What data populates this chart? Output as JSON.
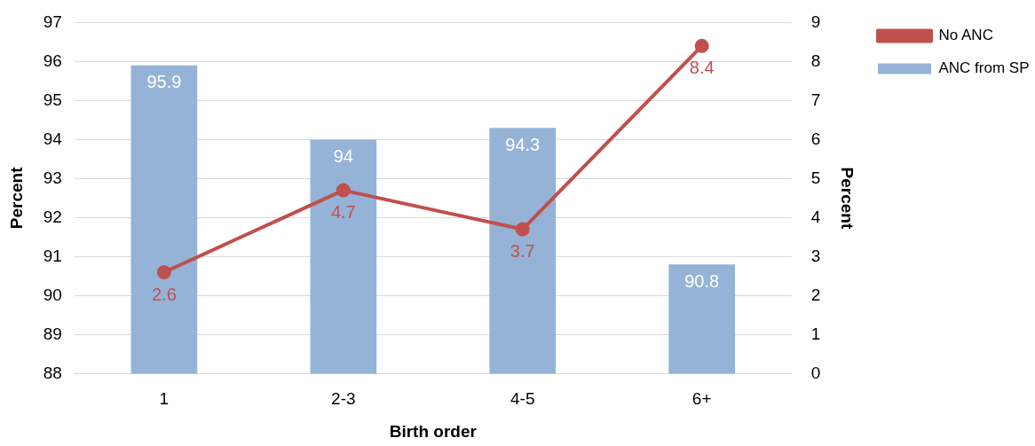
{
  "chart_data": {
    "type": "bar",
    "xlabel": "Birth order",
    "ylabel": "Percent",
    "y2label": "Percent",
    "categories": [
      "1",
      "2-3",
      "4-5",
      "6+"
    ],
    "series": [
      {
        "name": "ANC from SP",
        "color": "#95b3d7",
        "values": [
          95.9,
          94,
          94.3,
          90.8
        ]
      },
      {
        "name": "No ANC",
        "type": "line",
        "axis": "y2",
        "color": "#c0504d",
        "values": [
          2.6,
          4.7,
          3.7,
          8.4
        ]
      }
    ],
    "ylim": [
      88,
      97
    ],
    "yticks": [
      88,
      89,
      90,
      91,
      92,
      93,
      94,
      95,
      96,
      97
    ],
    "y2lim": [
      0,
      9
    ],
    "y2ticks": [
      0,
      1,
      2,
      3,
      4,
      5,
      6,
      7,
      8,
      9
    ],
    "grid": "y",
    "legend": "top right",
    "marker": "circle",
    "line_style": "solid",
    "data_labels": true
  }
}
